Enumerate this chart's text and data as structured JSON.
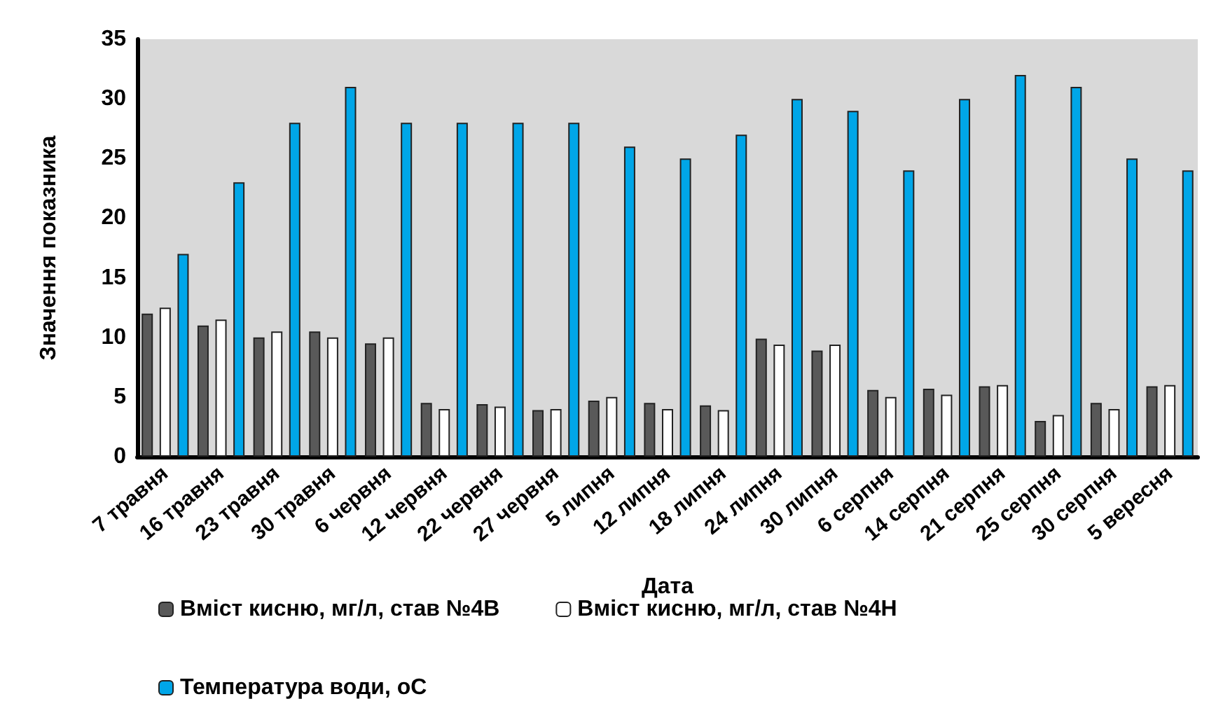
{
  "chart_data": {
    "type": "bar",
    "xlabel": "Дата",
    "ylabel": "Значення показника",
    "categories": [
      "7 травня",
      "16 травня",
      "23 травня",
      "30 травня",
      "6 червня",
      "12 червня",
      "22 червня",
      "27 червня",
      "5 липня",
      "12 липня",
      "18 липня",
      "24 липня",
      "30 липня",
      "6 серпня",
      "14 серпня",
      "21 серпня",
      "25 серпня",
      "30 серпня",
      "5 вересня"
    ],
    "series": [
      {
        "name": "Вміст кисню, мг/л, став №4В",
        "color": "#595959",
        "values": [
          12,
          11,
          10,
          10.5,
          9.5,
          4.5,
          4.4,
          3.9,
          4.7,
          4.5,
          4.3,
          9.9,
          8.9,
          5.6,
          5.7,
          5.9,
          3.0,
          4.5,
          5.9
        ]
      },
      {
        "name": "Вміст кисню, мг/л, став №4Н",
        "color": "#ffffff",
        "values": [
          12.5,
          11.5,
          10.5,
          10,
          10,
          4.0,
          4.2,
          4.0,
          5.0,
          4.0,
          3.9,
          9.4,
          9.4,
          5.0,
          5.2,
          6.0,
          3.5,
          4.0,
          6.0
        ]
      },
      {
        "name": "Температура води, оС",
        "color": "#00a6e8",
        "values": [
          17,
          23,
          28,
          31,
          28,
          28,
          28,
          28,
          26,
          25,
          27,
          30,
          29,
          24,
          30,
          32,
          31,
          25,
          24
        ]
      }
    ],
    "ylim": [
      0,
      35
    ],
    "yticks": [
      0,
      5,
      10,
      15,
      20,
      25,
      30,
      35
    ],
    "grid": false,
    "legend": "bottom"
  }
}
